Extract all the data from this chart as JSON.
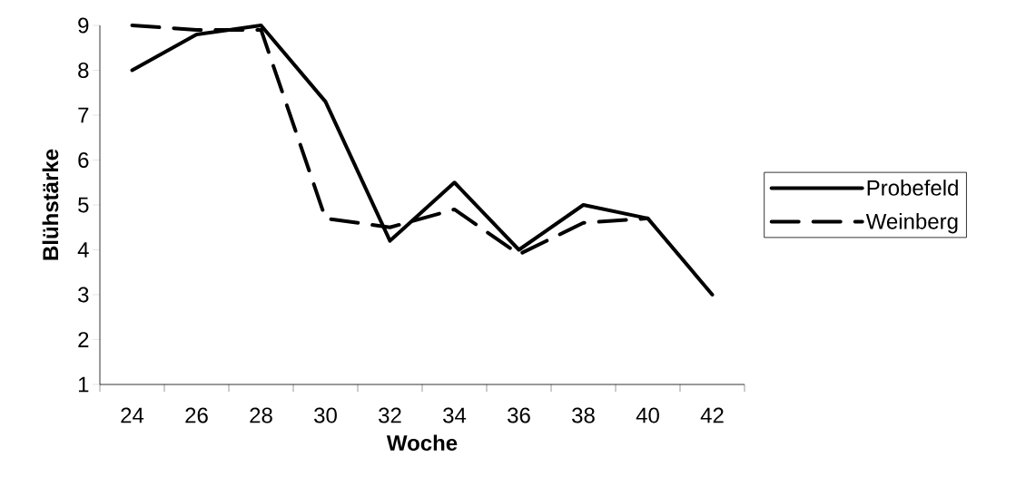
{
  "chart_data": {
    "type": "line",
    "xlabel": "Woche",
    "ylabel": "Blühstärke",
    "categories": [
      "24",
      "26",
      "28",
      "30",
      "32",
      "34",
      "36",
      "38",
      "40",
      "42"
    ],
    "ylim": [
      1,
      9
    ],
    "yticks": [
      1,
      2,
      3,
      4,
      5,
      6,
      7,
      8,
      9
    ],
    "legend": "right",
    "marker": "none",
    "series": [
      {
        "name": "Probefeld",
        "color": "#000000",
        "line_style": "solid",
        "values": [
          8.0,
          8.8,
          9.0,
          7.3,
          4.2,
          5.5,
          4.0,
          5.0,
          4.7,
          3.0
        ]
      },
      {
        "name": "Weinberg",
        "color": "#000000",
        "line_style": "dashed",
        "values": [
          9.0,
          8.9,
          8.9,
          4.7,
          4.5,
          4.9,
          3.9,
          4.6,
          4.7,
          null
        ]
      }
    ]
  }
}
